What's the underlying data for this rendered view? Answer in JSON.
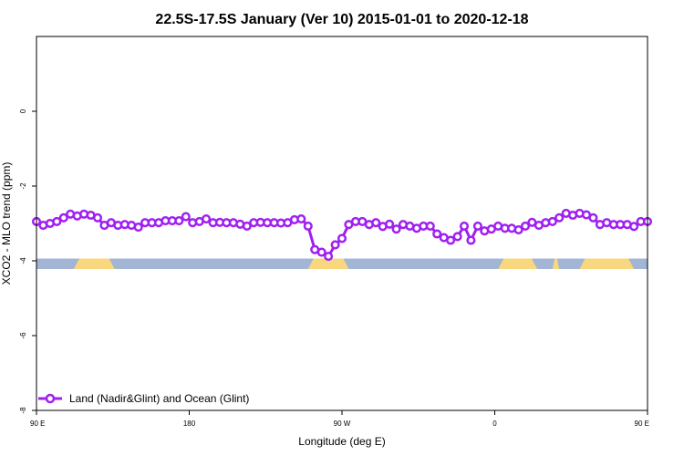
{
  "chart_data": {
    "type": "line",
    "title": "22.5S-17.5S January (Ver 10)   2015-01-01 to 2020-12-18",
    "xlabel": "Longitude (deg E)",
    "ylabel": "XCO2 - MLO trend (ppm)",
    "xlim": [
      90,
      450
    ],
    "ylim": [
      -8,
      2
    ],
    "x_ticks": [
      {
        "value": 90,
        "label": "90 E"
      },
      {
        "value": 180,
        "label": "180"
      },
      {
        "value": 270,
        "label": "90 W"
      },
      {
        "value": 360,
        "label": "0"
      },
      {
        "value": 450,
        "label": "90 E"
      },
      {
        "value": 540,
        "label": "180"
      }
    ],
    "y_ticks": [
      {
        "value": -8,
        "label": "-8"
      },
      {
        "value": -6,
        "label": "-6"
      },
      {
        "value": -4,
        "label": "-4"
      },
      {
        "value": -2,
        "label": "-2"
      },
      {
        "value": 0,
        "label": "0"
      }
    ],
    "grid": false,
    "legend_position": "bottom-left",
    "series": [
      {
        "name": "Land (Nadir&Glint) and Ocean (Glint)",
        "color": "#a020f0",
        "marker": "open-circle",
        "x": [
          90,
          94,
          98,
          102,
          106,
          110,
          114,
          118,
          122,
          126,
          130,
          134,
          138,
          142,
          146,
          150,
          154,
          158,
          162,
          166,
          170,
          174,
          178,
          182,
          186,
          190,
          194,
          198,
          202,
          206,
          210,
          214,
          218,
          222,
          226,
          230,
          234,
          238,
          242,
          246,
          250,
          254,
          258,
          262,
          266,
          270,
          274,
          278,
          282,
          286,
          290,
          294,
          298,
          302,
          306,
          310,
          314,
          318,
          322,
          326,
          330,
          334,
          338,
          342,
          346,
          350,
          354,
          358,
          362,
          366,
          370,
          374,
          378,
          382,
          386,
          390,
          394,
          398,
          402,
          406,
          410,
          414,
          418,
          422,
          426,
          430,
          434,
          438,
          442,
          446,
          450
        ],
        "y": [
          -2.95,
          -3.05,
          -3.0,
          -2.95,
          -2.85,
          -2.75,
          -2.8,
          -2.75,
          -2.78,
          -2.85,
          -3.05,
          -2.98,
          -3.05,
          -3.03,
          -3.05,
          -3.1,
          -2.98,
          -2.98,
          -2.98,
          -2.93,
          -2.93,
          -2.93,
          -2.82,
          -2.98,
          -2.95,
          -2.88,
          -2.98,
          -2.97,
          -2.98,
          -2.98,
          -3.02,
          -3.07,
          -2.98,
          -2.97,
          -2.98,
          -2.98,
          -2.99,
          -2.98,
          -2.9,
          -2.88,
          -3.07,
          -3.7,
          -3.77,
          -3.88,
          -3.57,
          -3.4,
          -3.03,
          -2.95,
          -2.95,
          -3.03,
          -2.98,
          -3.08,
          -3.02,
          -3.15,
          -3.03,
          -3.07,
          -3.13,
          -3.07,
          -3.07,
          -3.28,
          -3.38,
          -3.45,
          -3.35,
          -3.07,
          -3.45,
          -3.07,
          -3.2,
          -3.15,
          -3.07,
          -3.13,
          -3.13,
          -3.17,
          -3.07,
          -2.97,
          -3.05,
          -2.98,
          -2.95,
          -2.85,
          -2.73,
          -2.78,
          -2.73,
          -2.77,
          -2.85,
          -3.03,
          -2.98,
          -3.03,
          -3.03,
          -3.03,
          -3.08,
          -2.95,
          -2.95
        ]
      }
    ],
    "surface_strip": {
      "y_range": [
        -4.22,
        -3.94
      ],
      "ocean_color": "#a2b5d5",
      "land_color": "#f9d77e",
      "land_segments": [
        [
          112,
          136
        ],
        [
          250,
          274
        ],
        [
          362,
          385
        ],
        [
          394,
          398
        ],
        [
          410,
          442
        ]
      ]
    }
  }
}
